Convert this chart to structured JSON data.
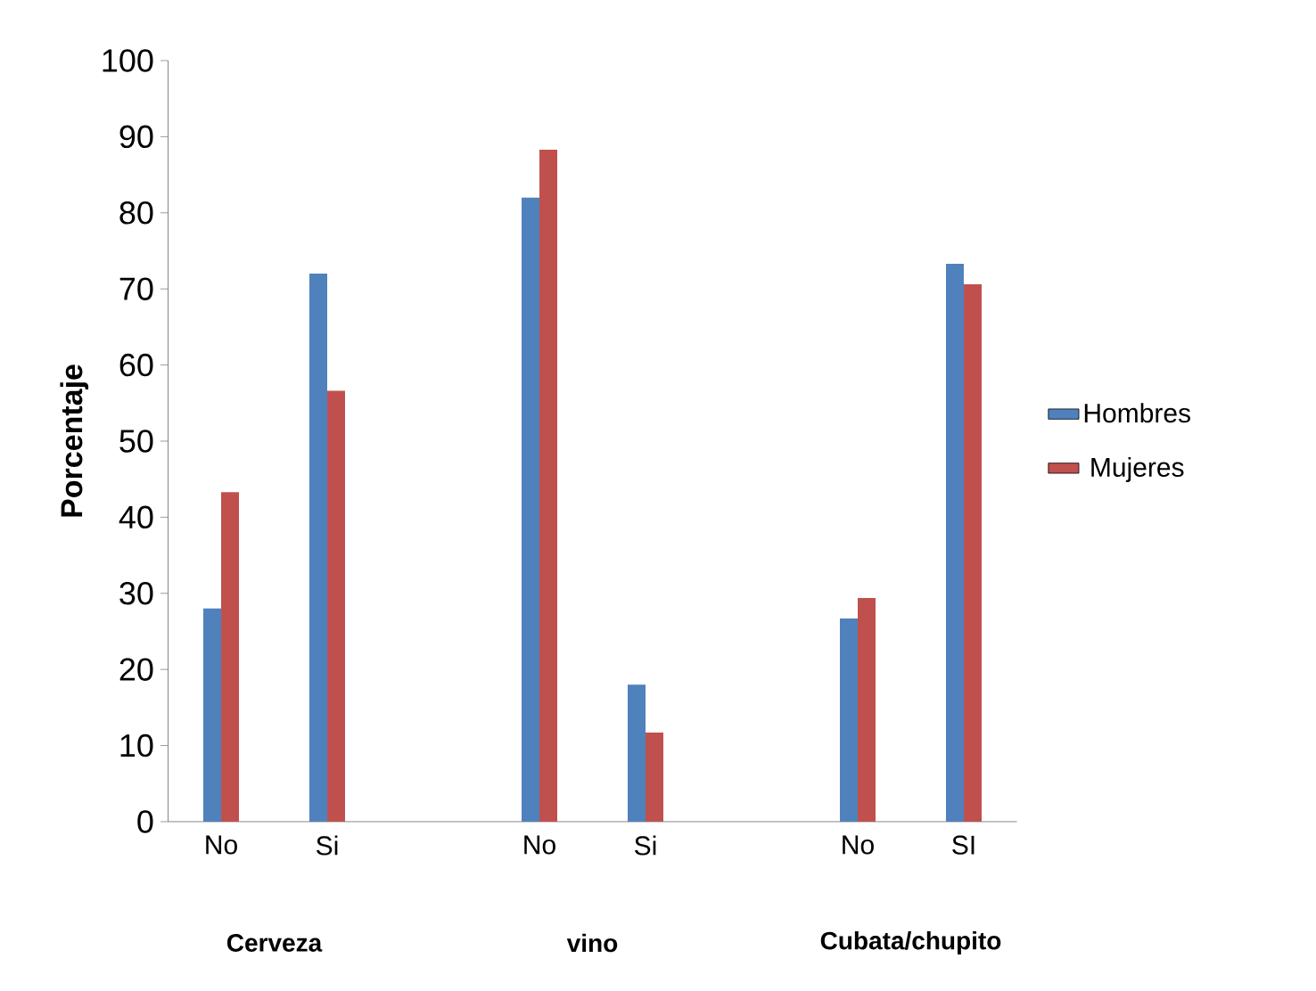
{
  "chart_data": {
    "type": "bar",
    "ylabel": "Porcentaje",
    "categories": [
      "No",
      "Si",
      null,
      "No",
      "Si",
      null,
      "No",
      "SI"
    ],
    "series": [
      {
        "name": "Hombres",
        "color": "#4f81bd",
        "values": [
          28,
          72,
          null,
          82,
          18,
          null,
          26.7,
          73.3
        ]
      },
      {
        "name": "Mujeres",
        "color": "#c0504d",
        "values": [
          43.3,
          56.6,
          null,
          88.3,
          11.7,
          null,
          29.4,
          70.6
        ]
      }
    ],
    "ylim": [
      0,
      100
    ],
    "yticks": [
      0,
      10,
      20,
      30,
      40,
      50,
      60,
      70,
      80,
      90,
      100
    ],
    "annotations": [
      "Cerveza",
      "vino",
      "Cubata/chupito"
    ],
    "grid": false,
    "legend": "right"
  }
}
